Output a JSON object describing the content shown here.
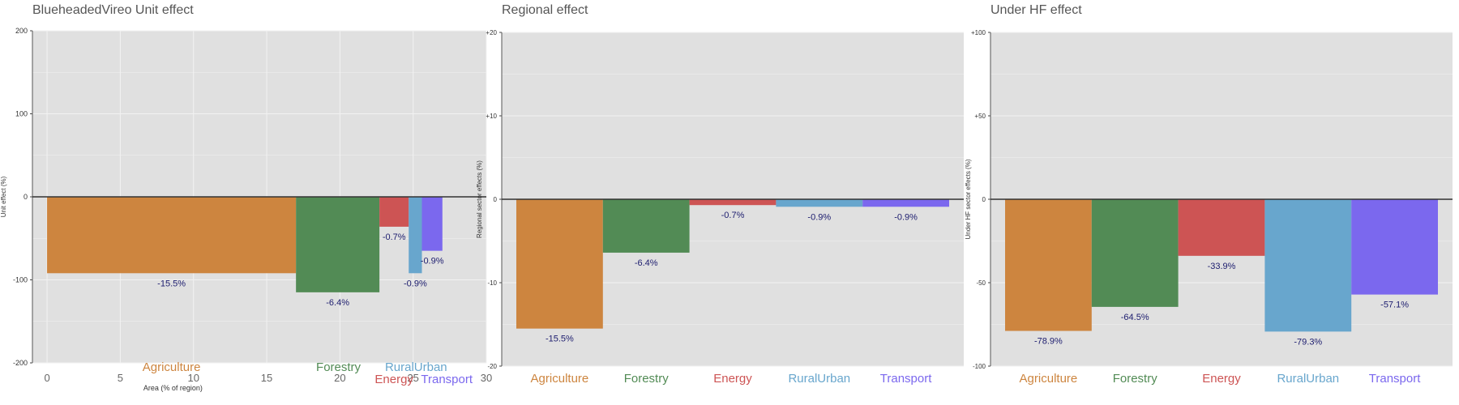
{
  "colors": {
    "plot_bg": "#e0e0e0",
    "grid": "#f2f2f2",
    "zero_line": "#333333",
    "value_label": "#1c1c6e",
    "Agriculture": "#cd853f",
    "Forestry": "#528b55",
    "Energy": "#cd5454",
    "RuralUrban": "#68a6cd",
    "Transport": "#7b68ee"
  },
  "chart_data": [
    {
      "id": "unit",
      "type": "bar",
      "title": "BlueheadedVireo Unit effect",
      "xlabel": "Area (% of region)",
      "ylabel": "Unit effect (%)",
      "ylim": [
        -200,
        200
      ],
      "yticks": [
        -200,
        -100,
        0,
        100,
        200
      ],
      "ytick_labels": [
        "-200",
        "-100",
        "0",
        "100",
        "200"
      ],
      "xlim": [
        -1,
        30
      ],
      "xticks": [
        0,
        5,
        10,
        15,
        20,
        25,
        30
      ],
      "xtick_labels": [
        "0",
        "5",
        "10",
        "15",
        "20",
        "25",
        "30"
      ],
      "grid": true,
      "bars": [
        {
          "category": "Agriculture",
          "x_start": 0,
          "x_end": 17,
          "value": -92,
          "label": "-15.5%"
        },
        {
          "category": "Forestry",
          "x_start": 17,
          "x_end": 22.7,
          "value": -115,
          "label": "-6.4%"
        },
        {
          "category": "Energy",
          "x_start": 22.7,
          "x_end": 24.7,
          "value": -36,
          "label": "-0.7%"
        },
        {
          "category": "RuralUrban",
          "x_start": 24.7,
          "x_end": 25.6,
          "value": -92,
          "label": "-0.9%"
        },
        {
          "category": "Transport",
          "x_start": 25.6,
          "x_end": 27.0,
          "value": -65,
          "label": "-0.9%"
        }
      ],
      "category_labels": [
        {
          "text": "Agriculture",
          "at_x": 8.5,
          "row": 0
        },
        {
          "text": "Forestry",
          "at_x": 19.9,
          "row": 0
        },
        {
          "text": "Energy",
          "at_x": 23.7,
          "row": 1
        },
        {
          "text": "RuralUrban",
          "at_x": 25.2,
          "row": 0
        },
        {
          "text": "Transport",
          "at_x": 27.3,
          "row": 1
        }
      ]
    },
    {
      "id": "regional",
      "type": "bar",
      "title": "Regional effect",
      "xlabel": "",
      "ylabel": "Regional sector effects (%)",
      "ylim": [
        -20,
        20
      ],
      "yticks": [
        -20,
        -10,
        0,
        10,
        20
      ],
      "ytick_labels": [
        "-20",
        "-10",
        "0",
        "+10",
        "+20"
      ],
      "grid": true,
      "categories": [
        "Agriculture",
        "Forestry",
        "Energy",
        "RuralUrban",
        "Transport"
      ],
      "values": [
        -15.5,
        -6.4,
        -0.7,
        -0.9,
        -0.9
      ],
      "value_labels": [
        "-15.5%",
        "-6.4%",
        "-0.7%",
        "-0.9%",
        "-0.9%"
      ]
    },
    {
      "id": "underhf",
      "type": "bar",
      "title": "Under HF effect",
      "xlabel": "",
      "ylabel": "Under HF sector effects (%)",
      "ylim": [
        -100,
        100
      ],
      "yticks": [
        -100,
        -50,
        0,
        50,
        100
      ],
      "ytick_labels": [
        "-100",
        "-50",
        "0",
        "+50",
        "+100"
      ],
      "grid": true,
      "categories": [
        "Agriculture",
        "Forestry",
        "Energy",
        "RuralUrban",
        "Transport"
      ],
      "values": [
        -78.9,
        -64.5,
        -33.9,
        -79.3,
        -57.1
      ],
      "value_labels": [
        "-78.9%",
        "-64.5%",
        "-33.9%",
        "-79.3%",
        "-57.1%"
      ]
    }
  ]
}
